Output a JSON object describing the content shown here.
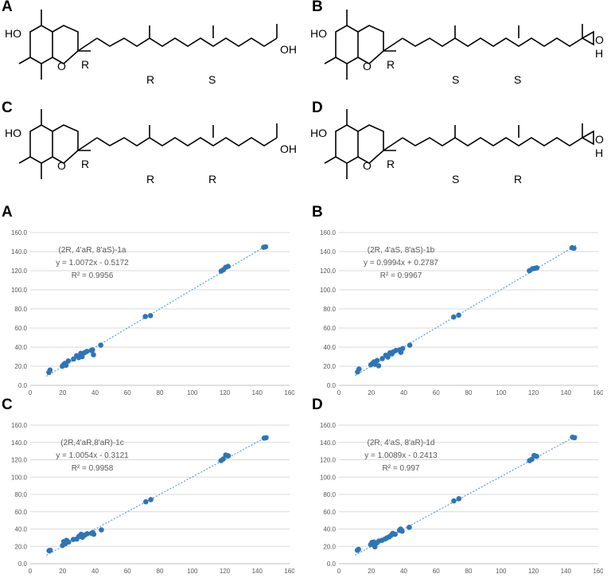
{
  "structures": [
    {
      "panel": "A",
      "labels": [
        "HO",
        "O",
        "R",
        "R",
        "S",
        "OH"
      ]
    },
    {
      "panel": "B",
      "labels": [
        "HO",
        "O",
        "R",
        "S",
        "S",
        "O",
        "H"
      ]
    },
    {
      "panel": "C",
      "labels": [
        "HO",
        "O",
        "R",
        "R",
        "R",
        "OH"
      ]
    },
    {
      "panel": "D",
      "labels": [
        "HO",
        "O",
        "R",
        "S",
        "R",
        "O",
        "H"
      ]
    }
  ],
  "chart_data": [
    {
      "panel": "A",
      "type": "scatter",
      "title": "(2R, 4'aR, 8'aS)-1a",
      "equation": "y = 1.0072x - 0.5172",
      "r2": "R² = 0.9956",
      "xlim": [
        0,
        160
      ],
      "ylim": [
        0,
        160
      ],
      "xticks": [
        "0",
        "20",
        "40",
        "60",
        "80",
        "100",
        "120",
        "140",
        "160"
      ],
      "yticks": [
        "0.0",
        "20.0",
        "40.0",
        "60.0",
        "80.0",
        "100.0",
        "120.0",
        "140.0",
        "160.0"
      ],
      "slope": 1.0072,
      "intercept": -0.5172,
      "x": [
        11.5,
        12.2,
        19.8,
        20.5,
        21.4,
        22.1,
        23.5,
        26.7,
        28.6,
        29.9,
        31.2,
        32.0,
        33.4,
        34.9,
        37.6,
        38.4,
        39.0,
        43.5,
        71.0,
        74.2,
        117.8,
        119.2,
        120.5,
        122.0,
        144.0,
        145.2
      ],
      "y": [
        13.5,
        16.0,
        20.0,
        21.5,
        23.0,
        21.0,
        25.5,
        27.5,
        31.0,
        29.0,
        33.5,
        30.0,
        34.0,
        35.5,
        36.5,
        37.0,
        32.0,
        42.0,
        72.0,
        73.0,
        119.5,
        121.0,
        123.5,
        124.5,
        144.5,
        145.0
      ]
    },
    {
      "panel": "B",
      "type": "scatter",
      "title": "(2R, 4'aS, 8'aS)-1b",
      "equation": "y = 0.9994x + 0.2787",
      "r2": "R² = 0.9967",
      "xlim": [
        0,
        160
      ],
      "ylim": [
        0,
        160
      ],
      "xticks": [
        "0",
        "20",
        "40",
        "60",
        "80",
        "100",
        "120",
        "140",
        "160"
      ],
      "yticks": [
        "0.0",
        "20.0",
        "40.0",
        "60.0",
        "80.0",
        "100.0",
        "120.0",
        "140.0",
        "160.0"
      ],
      "slope": 0.9994,
      "intercept": 0.2787,
      "x": [
        11.5,
        12.4,
        19.7,
        20.8,
        21.6,
        22.3,
        23.6,
        24.5,
        26.8,
        28.9,
        30.2,
        31.5,
        32.7,
        33.5,
        35.2,
        37.5,
        38.2,
        39.3,
        43.7,
        70.8,
        73.9,
        117.5,
        119.4,
        120.8,
        122.1,
        143.8,
        145.0
      ],
      "y": [
        14.0,
        17.0,
        21.5,
        23.0,
        24.5,
        22.0,
        26.0,
        20.5,
        28.0,
        31.5,
        29.5,
        34.0,
        33.0,
        35.0,
        36.5,
        37.0,
        34.5,
        38.5,
        42.0,
        71.5,
        73.5,
        120.0,
        122.0,
        122.5,
        123.0,
        144.0,
        143.5
      ]
    },
    {
      "panel": "C",
      "type": "scatter",
      "title": "(2R,4'aR,8'aR)-1c",
      "equation": "y = 1.0054x - 0.3121",
      "r2": "R² = 0.9958",
      "xlim": [
        0,
        160
      ],
      "ylim": [
        0,
        160
      ],
      "xticks": [
        "0",
        "20",
        "40",
        "60",
        "80",
        "100",
        "120",
        "140",
        "160"
      ],
      "yticks": [
        "0.0",
        "20.0",
        "40.0",
        "60.0",
        "80.0",
        "100.0",
        "120.0",
        "140.0",
        "160.0"
      ],
      "slope": 1.0054,
      "intercept": -0.3121,
      "x": [
        11.6,
        12.3,
        19.9,
        20.7,
        21.6,
        22.4,
        23.7,
        26.6,
        28.7,
        30.0,
        31.4,
        32.2,
        33.6,
        35.1,
        37.8,
        38.6,
        39.2,
        43.9,
        71.3,
        74.4,
        117.7,
        119.1,
        120.6,
        122.2,
        144.3,
        145.5
      ],
      "y": [
        15.0,
        15.5,
        21.0,
        25.5,
        23.0,
        27.0,
        25.0,
        28.0,
        28.5,
        31.5,
        34.0,
        30.5,
        33.0,
        34.5,
        35.0,
        36.0,
        34.0,
        39.0,
        71.5,
        74.0,
        119.0,
        121.0,
        125.5,
        124.5,
        145.0,
        145.5
      ]
    },
    {
      "panel": "D",
      "type": "scatter",
      "title": "(2R, 4'aS, 8'aR)-1d",
      "equation": "y = 1.0089x - 0.2413",
      "r2": "R² = 0.997",
      "xlim": [
        0,
        160
      ],
      "ylim": [
        0,
        160
      ],
      "xticks": [
        "0",
        "20",
        "40",
        "60",
        "80",
        "100",
        "120",
        "140",
        "160"
      ],
      "yticks": [
        "0.0",
        "20.0",
        "40.0",
        "60.0",
        "80.0",
        "100.0",
        "120.0",
        "140.0",
        "160.0"
      ],
      "slope": 1.0089,
      "intercept": -0.2413,
      "x": [
        11.4,
        12.1,
        19.6,
        20.4,
        21.5,
        22.2,
        23.4,
        24.6,
        26.5,
        28.5,
        29.8,
        31.1,
        32.3,
        33.2,
        34.7,
        37.4,
        38.1,
        39.0,
        43.4,
        70.9,
        74.0,
        117.6,
        119.0,
        120.4,
        122.0,
        144.1,
        145.3
      ],
      "y": [
        15.5,
        16.5,
        22.0,
        24.5,
        25.0,
        19.5,
        24.0,
        26.0,
        27.0,
        28.5,
        30.0,
        31.0,
        33.0,
        35.0,
        34.0,
        38.5,
        40.0,
        37.5,
        42.0,
        72.5,
        75.0,
        119.0,
        120.5,
        125.0,
        124.0,
        146.0,
        145.5
      ]
    }
  ]
}
